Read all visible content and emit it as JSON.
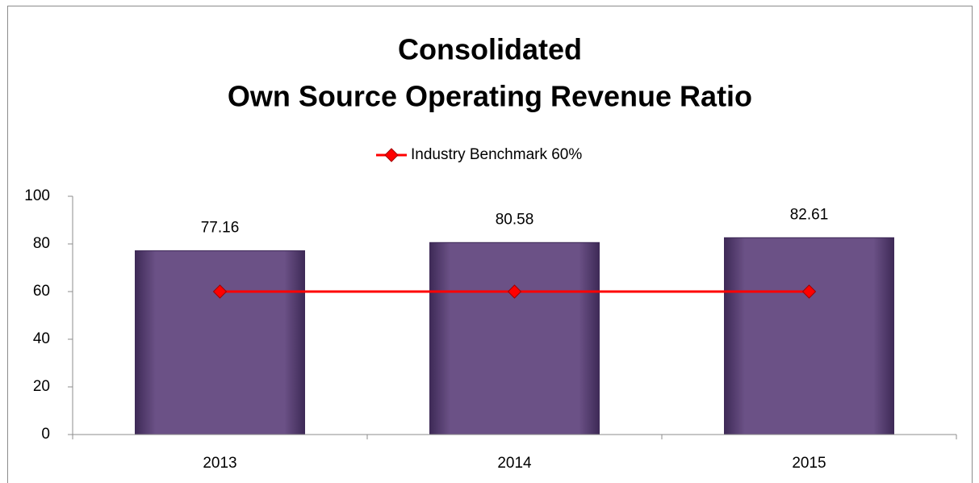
{
  "chart_data": {
    "type": "bar",
    "title": [
      "Consolidated",
      "Own Source Operating Revenue Ratio"
    ],
    "categories": [
      "2013",
      "2014",
      "2015"
    ],
    "series": [
      {
        "type": "bar",
        "color": "#6b5186",
        "values": [
          77.16,
          80.58,
          82.61
        ]
      },
      {
        "type": "line",
        "name": "Industry Benchmark 60%",
        "color": "#ff0000",
        "values": [
          60,
          60,
          60
        ]
      }
    ],
    "ylim": [
      0,
      100
    ],
    "yticks": [
      0,
      20,
      40,
      60,
      80,
      100
    ],
    "legend": "top"
  }
}
